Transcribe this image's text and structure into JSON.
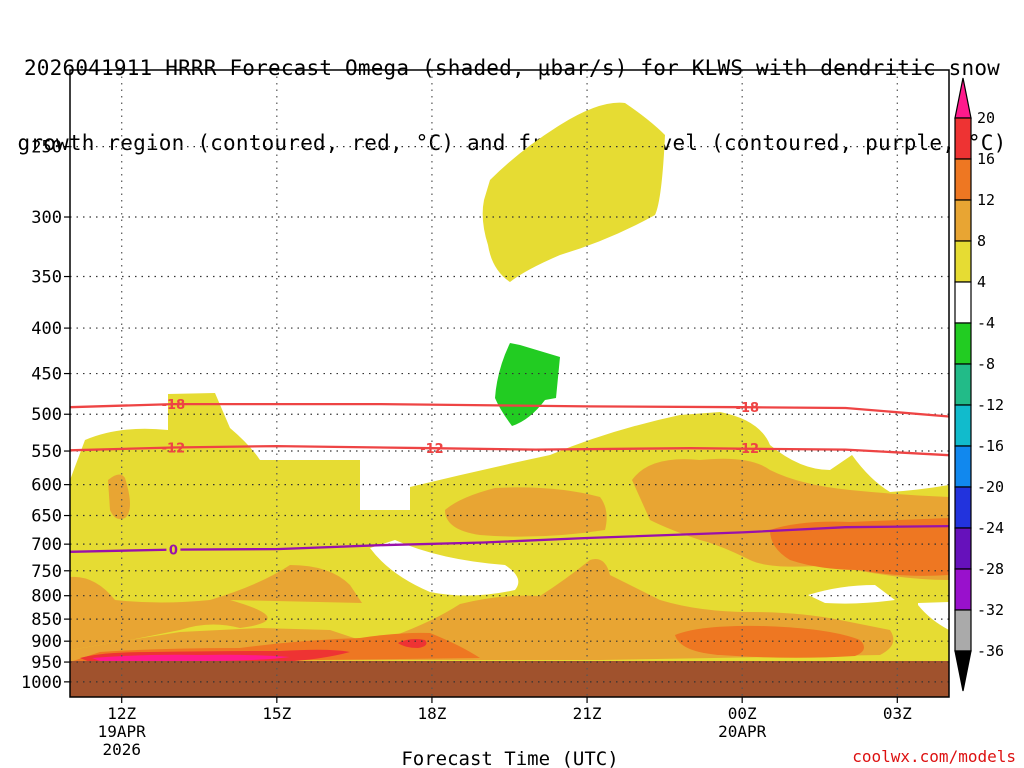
{
  "title_line1": "2026041911 HRRR Forecast Omega (shaded, μbar/s) for KLWS with dendritic snow",
  "title_line2": "growth region (contoured, red, °C) and freezing level (contoured, purple, °C)",
  "credit": "coolwx.com/models",
  "chart_data": {
    "type": "heatmap",
    "xlabel": "Forecast Time (UTC)",
    "ylabel": "",
    "y_scale": "log-pressure (inverted)",
    "ylim_hpa": [
      1040,
      205
    ],
    "xlim_hours_after_2026041911": [
      0,
      17
    ],
    "y_ticks": [
      250,
      300,
      350,
      400,
      450,
      500,
      550,
      600,
      650,
      700,
      750,
      800,
      850,
      900,
      950,
      1000
    ],
    "x_ticks": [
      {
        "hour": 1,
        "label": "12Z",
        "sub1": "19APR",
        "sub2": "2026"
      },
      {
        "hour": 4,
        "label": "15Z",
        "sub1": "",
        "sub2": ""
      },
      {
        "hour": 7,
        "label": "18Z",
        "sub1": "",
        "sub2": ""
      },
      {
        "hour": 10,
        "label": "21Z",
        "sub1": "",
        "sub2": ""
      },
      {
        "hour": 13,
        "label": "00Z",
        "sub1": "20APR",
        "sub2": ""
      },
      {
        "hour": 16,
        "label": "03Z",
        "sub1": "",
        "sub2": ""
      }
    ],
    "grid": true,
    "colorbar": {
      "levels": [
        "20",
        "16",
        "12",
        "8",
        "4",
        "-4",
        "-8",
        "-12",
        "-16",
        "-20",
        "-24",
        "-28",
        "-32",
        "-36"
      ],
      "colors": [
        "#ff1a8c",
        "#ee3333",
        "#ee7722",
        "#e8a533",
        "#e6dc33",
        "#ffffff",
        "#22cc22",
        "#22bb88",
        "#11bbcc",
        "#1188ee",
        "#2233dd",
        "#6611bb",
        "#9911cc",
        "#aaaaaa",
        "#000000"
      ]
    },
    "shaded_colors": {
      "4_to_8": "#e6dc33",
      "8_to_12": "#e8a533",
      "12_to_16": "#ee7722",
      "16_to_20": "#ee3333",
      "ge_20": "#ff1a8c",
      "le_neg4": "#22cc22",
      "ground": "#a0522d"
    },
    "contours": [
      {
        "name": "-18",
        "color": "#ee4444",
        "points": [
          [
            0,
            491
          ],
          [
            2,
            487
          ],
          [
            6,
            487
          ],
          [
            10,
            490
          ],
          [
            13,
            491
          ],
          [
            15,
            492
          ],
          [
            17,
            503
          ]
        ]
      },
      {
        "name": "-12",
        "color": "#ee4444",
        "points": [
          [
            0,
            549
          ],
          [
            2,
            545
          ],
          [
            4,
            543
          ],
          [
            7,
            546
          ],
          [
            9,
            548
          ],
          [
            12,
            546
          ],
          [
            15,
            548
          ],
          [
            17,
            556
          ]
        ]
      },
      {
        "name": "0",
        "color": "#9911aa",
        "points": [
          [
            0,
            714
          ],
          [
            2,
            710
          ],
          [
            4,
            709
          ],
          [
            6,
            702
          ],
          [
            8,
            697
          ],
          [
            10,
            689
          ],
          [
            13,
            679
          ],
          [
            15,
            670
          ],
          [
            17,
            668
          ]
        ]
      }
    ],
    "contour_label_positions": [
      {
        "text": "-18",
        "hour": 2.0,
        "hpa": 487
      },
      {
        "text": "-18",
        "hour": 13.1,
        "hpa": 491
      },
      {
        "text": "-12",
        "hour": 2.0,
        "hpa": 545
      },
      {
        "text": "-12",
        "hour": 7.0,
        "hpa": 546
      },
      {
        "text": "-12",
        "hour": 13.1,
        "hpa": 546
      },
      {
        "text": "0",
        "hour": 2.0,
        "hpa": 710
      }
    ]
  }
}
